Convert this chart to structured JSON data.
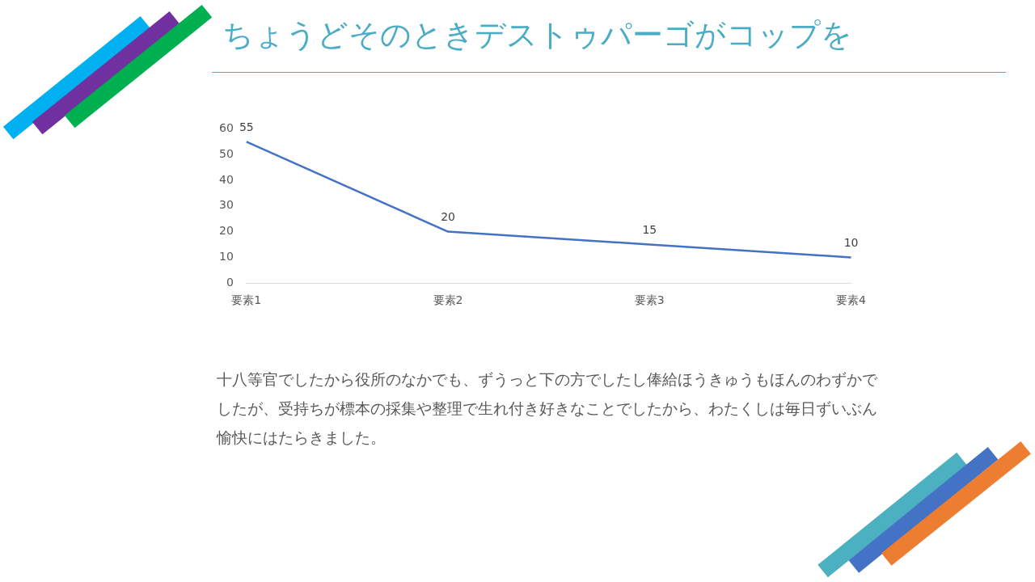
{
  "chart_data": {
    "type": "line",
    "title": "ちょうどそのときデストゥパーゴがコップを",
    "categories": [
      "要素1",
      "要素2",
      "要素3",
      "要素4"
    ],
    "series": [
      {
        "color": "#4472c4",
        "values": [
          55,
          20,
          15,
          10
        ]
      }
    ],
    "ylim": [
      0,
      60
    ],
    "yticks": [
      0,
      10,
      20,
      30,
      40,
      50,
      60
    ],
    "grid": false,
    "legend": false,
    "marker": "none",
    "data_labels": true,
    "annotations": [
      "十八等官でしたから役所のなかでも、ずうっと下の方でしたし俸給ほうきゅうもほんのわずかでしたが、受持ちが標本の採集や整理で生れ付き好きなことでしたから、わたくしは毎日ずいぶん愉快にはたらきました。"
    ]
  }
}
